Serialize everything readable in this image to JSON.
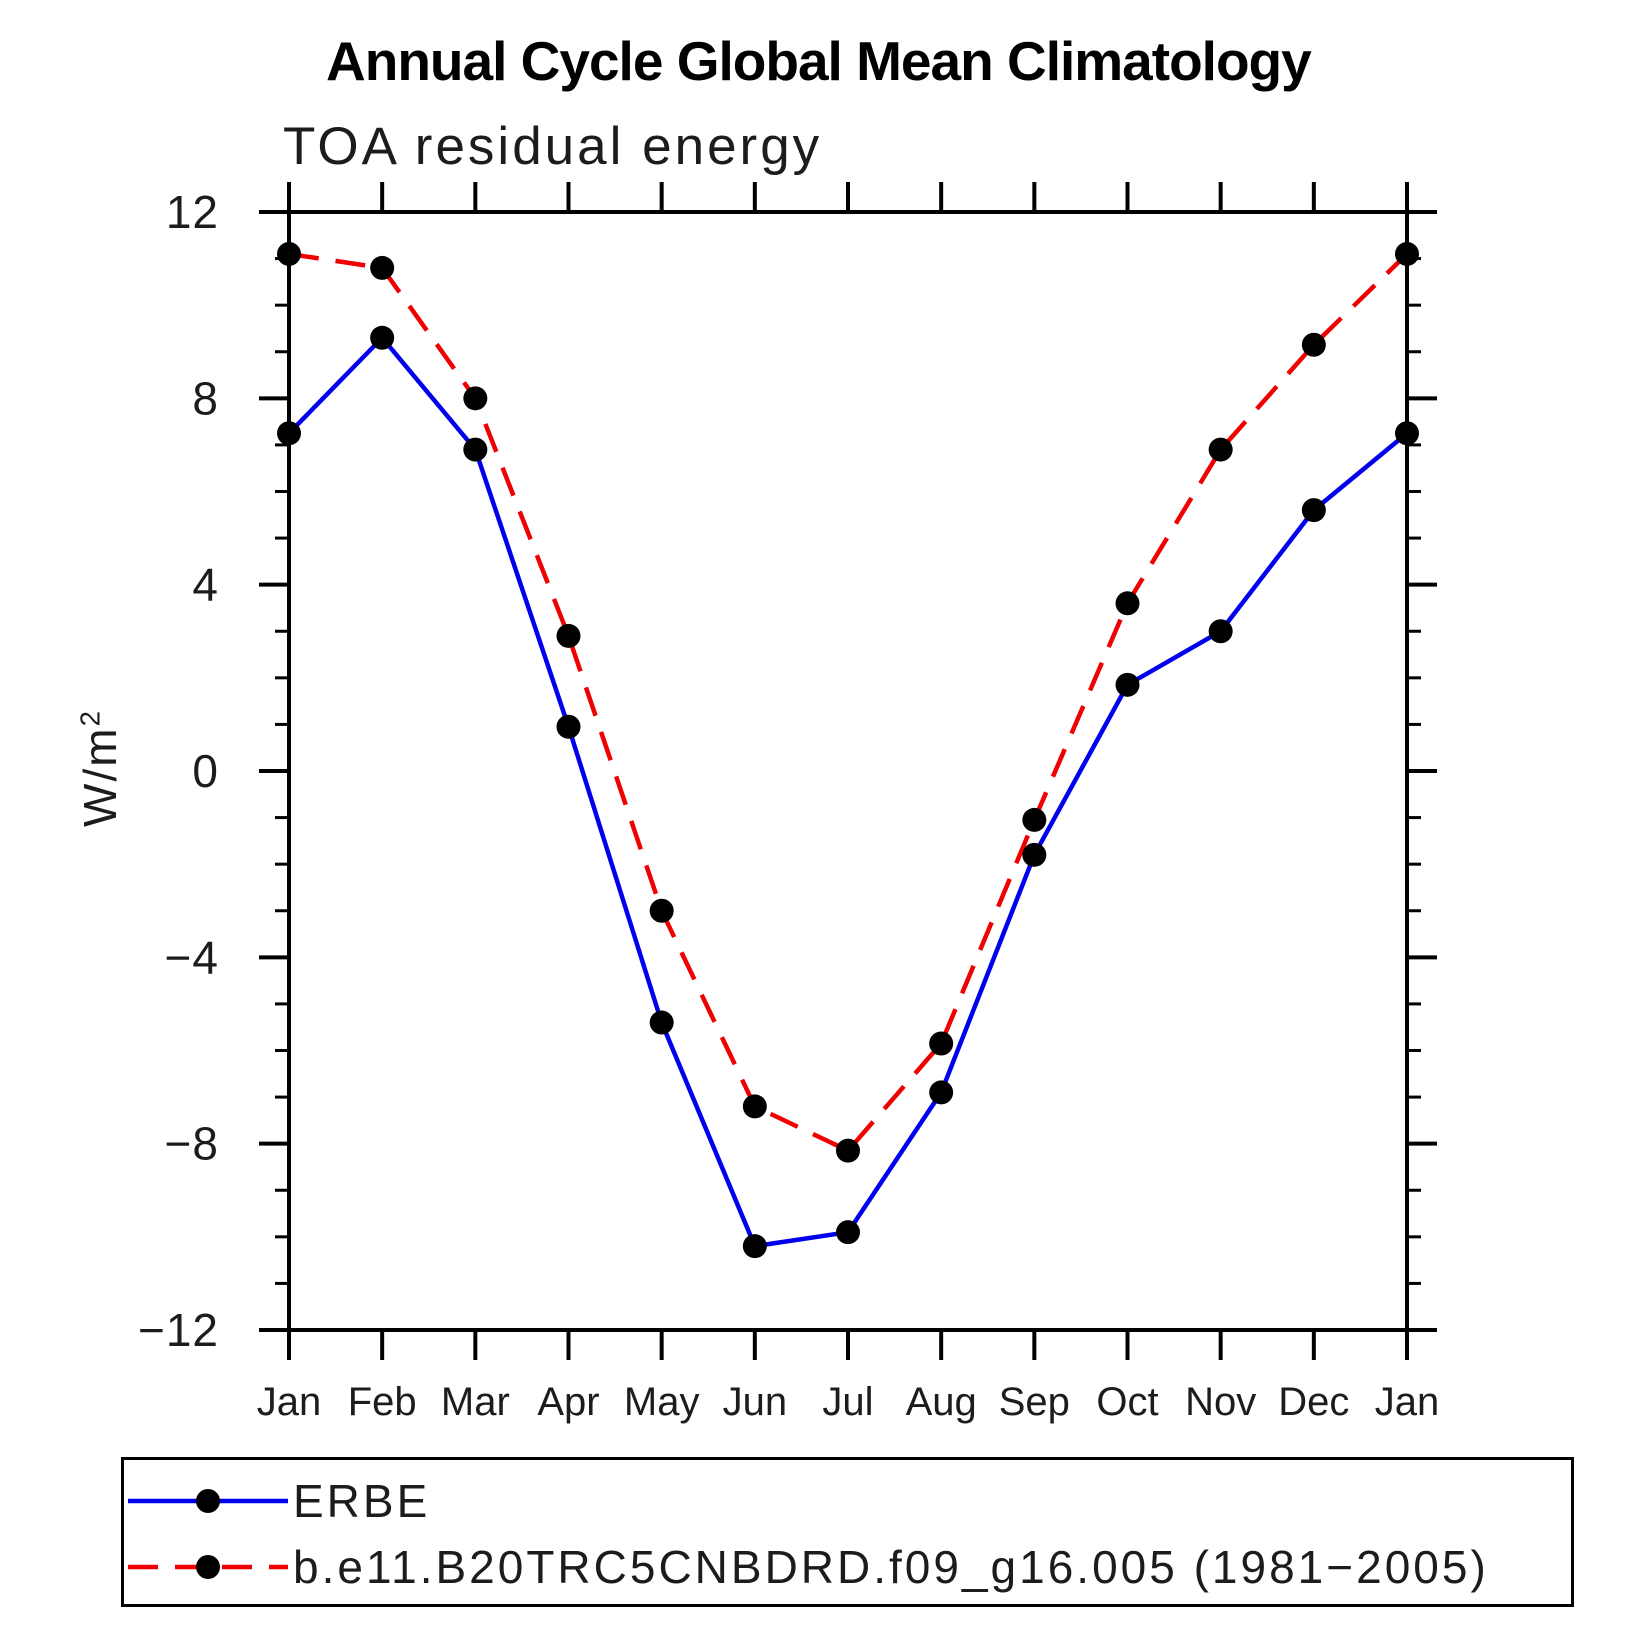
{
  "header": {
    "title": "Annual Cycle Global Mean Climatology",
    "subtitle": "TOA residual energy"
  },
  "y_axis": {
    "label_base": "W/m",
    "label_exponent": "2"
  },
  "legend": {
    "entries": [
      {
        "label": "ERBE",
        "color": "#0000ee",
        "line_style": "solid",
        "marker_color": "#000000"
      },
      {
        "label": "b.e11.B20TRC5CNBDRD.f09_g16.005 (1981−2005)",
        "color": "#f00000",
        "line_style": "dashed",
        "marker_color": "#000000"
      }
    ]
  },
  "chart_data": {
    "type": "line",
    "title": "Annual Cycle Global Mean Climatology",
    "subtitle": "TOA residual energy",
    "ylabel": "W/m²",
    "x_categories": [
      "Jan",
      "Feb",
      "Mar",
      "Apr",
      "May",
      "Jun",
      "Jul",
      "Aug",
      "Sep",
      "Oct",
      "Nov",
      "Dec",
      "Jan"
    ],
    "ylim": [
      -12,
      12
    ],
    "yticks": {
      "major_values": [
        -12,
        -8,
        -4,
        0,
        4,
        8,
        12
      ],
      "major_labels": [
        "−12",
        "−8",
        "−4",
        "0",
        "4",
        "8",
        "12"
      ],
      "minor_step": 1
    },
    "grid": false,
    "legend_position": "bottom",
    "series": [
      {
        "name": "ERBE",
        "color": "#0000ee",
        "line_style": "solid",
        "marker": "filled-circle",
        "marker_color": "#000000",
        "values": [
          7.25,
          9.3,
          6.9,
          0.95,
          -5.4,
          -10.2,
          -9.9,
          -6.9,
          -1.8,
          1.85,
          3.0,
          5.6,
          7.25
        ]
      },
      {
        "name": "b.e11.B20TRC5CNBDRD.f09_g16.005 (1981−2005)",
        "color": "#f00000",
        "line_style": "dashed",
        "marker": "filled-circle",
        "marker_color": "#000000",
        "values": [
          11.1,
          10.8,
          8.0,
          2.9,
          -3.0,
          -7.2,
          -8.15,
          -5.85,
          -1.05,
          3.6,
          6.9,
          9.15,
          11.1
        ]
      }
    ]
  }
}
